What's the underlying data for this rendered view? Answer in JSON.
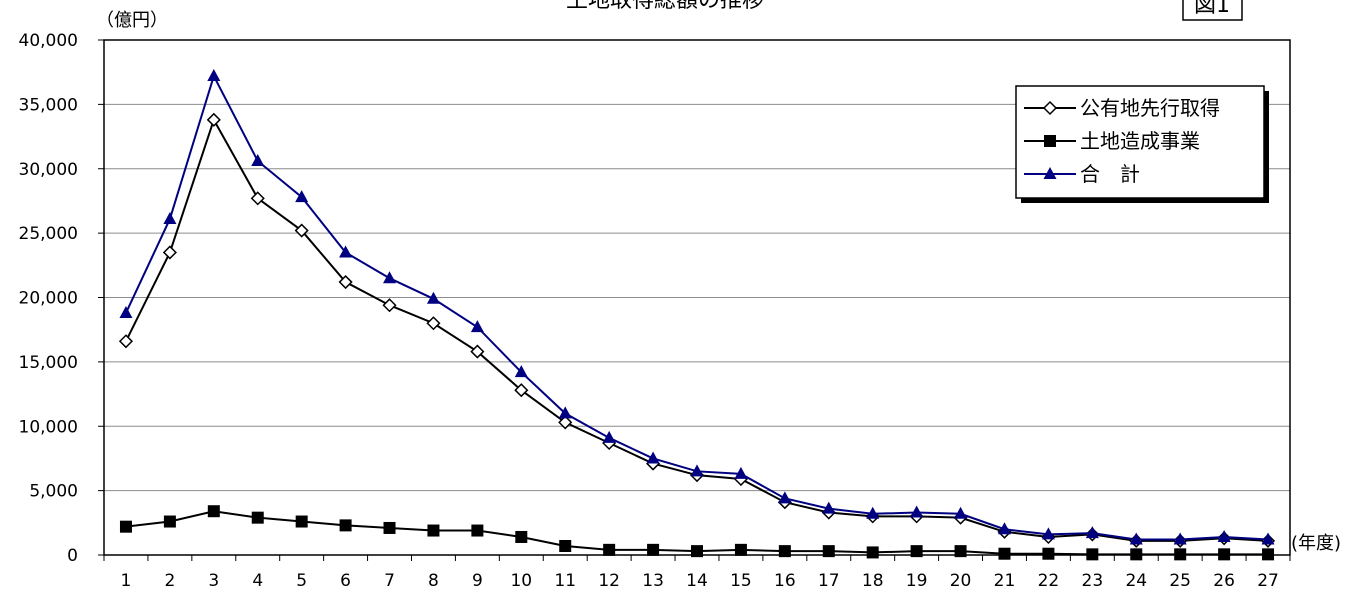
{
  "header": {
    "figure_label": "図1"
  },
  "chart_data": {
    "type": "line",
    "title": "土地取得総額の推移",
    "ylabel": "（億円）",
    "xlabel": "(年度)",
    "ylim": [
      0,
      40000
    ],
    "ytick_step": 5000,
    "ytick_labels": [
      "0",
      "5,000",
      "10,000",
      "15,000",
      "20,000",
      "25,000",
      "30,000",
      "35,000",
      "40,000"
    ],
    "grid": true,
    "legend_position": "top-right",
    "categories": [
      "1",
      "2",
      "3",
      "4",
      "5",
      "6",
      "7",
      "8",
      "9",
      "10",
      "11",
      "12",
      "13",
      "14",
      "15",
      "16",
      "17",
      "18",
      "19",
      "20",
      "21",
      "22",
      "23",
      "24",
      "25",
      "26",
      "27"
    ],
    "series": [
      {
        "name": "公有地先行取得",
        "marker": "diamond-open",
        "color": "#000000",
        "values": [
          16600,
          23500,
          33800,
          27700,
          25200,
          21200,
          19400,
          18000,
          15800,
          12800,
          10300,
          8700,
          7100,
          6200,
          5900,
          4100,
          3300,
          3000,
          3000,
          2900,
          1800,
          1400,
          1600,
          1100,
          1100,
          1300,
          1100
        ]
      },
      {
        "name": "土地造成事業",
        "marker": "square-filled",
        "color": "#000000",
        "values": [
          2200,
          2600,
          3400,
          2900,
          2600,
          2300,
          2100,
          1900,
          1900,
          1400,
          700,
          400,
          400,
          300,
          400,
          300,
          300,
          200,
          300,
          300,
          100,
          100,
          50,
          50,
          50,
          50,
          50
        ]
      },
      {
        "name": "合　計",
        "marker": "triangle-filled",
        "color": "#000080",
        "values": [
          18800,
          26100,
          37200,
          30600,
          27800,
          23500,
          21500,
          19900,
          17700,
          14200,
          11000,
          9100,
          7500,
          6500,
          6300,
          4400,
          3600,
          3200,
          3300,
          3200,
          2000,
          1600,
          1700,
          1200,
          1200,
          1400,
          1200
        ]
      }
    ]
  }
}
